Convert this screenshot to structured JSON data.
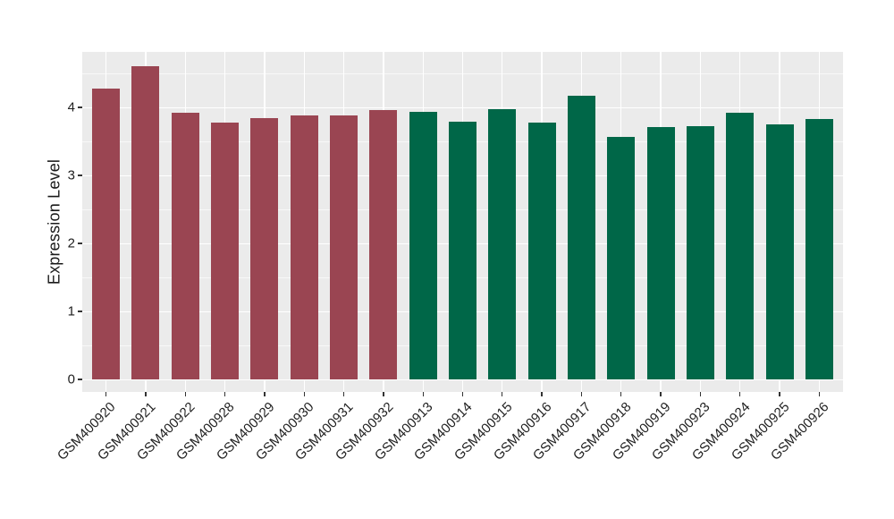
{
  "chart_data": {
    "type": "bar",
    "title": "",
    "xlabel": "",
    "ylabel": "Expression Level",
    "categories": [
      "GSM400920",
      "GSM400921",
      "GSM400922",
      "GSM400928",
      "GSM400929",
      "GSM400930",
      "GSM400931",
      "GSM400932",
      "GSM400913",
      "GSM400914",
      "GSM400915",
      "GSM400916",
      "GSM400917",
      "GSM400918",
      "GSM400919",
      "GSM400923",
      "GSM400924",
      "GSM400925",
      "GSM400926"
    ],
    "values": [
      4.28,
      4.61,
      3.92,
      3.78,
      3.84,
      3.88,
      3.88,
      3.96,
      3.94,
      3.79,
      3.97,
      3.77,
      4.17,
      3.56,
      3.71,
      3.73,
      3.92,
      3.75,
      3.83
    ],
    "groups": [
      "A",
      "A",
      "A",
      "A",
      "A",
      "A",
      "A",
      "A",
      "B",
      "B",
      "B",
      "B",
      "B",
      "B",
      "B",
      "B",
      "B",
      "B",
      "B"
    ],
    "group_colors": {
      "A": "#9A4552",
      "B": "#006748"
    },
    "yticks": [
      "0",
      "1",
      "2",
      "3",
      "4"
    ],
    "ytick_values": [
      0,
      1,
      2,
      3,
      4
    ],
    "minor_ytick_values": [
      0.5,
      1.5,
      2.5,
      3.5,
      4.5
    ],
    "ylim": [
      -0.184,
      4.816
    ],
    "grid": "on",
    "legend": "none",
    "panel_background": "#EBEBEB",
    "gridline_color": "#FFFFFF",
    "axis_text_color": "#1F1F1F",
    "tick_color": "#333333",
    "bar_width_fraction": 0.7
  }
}
